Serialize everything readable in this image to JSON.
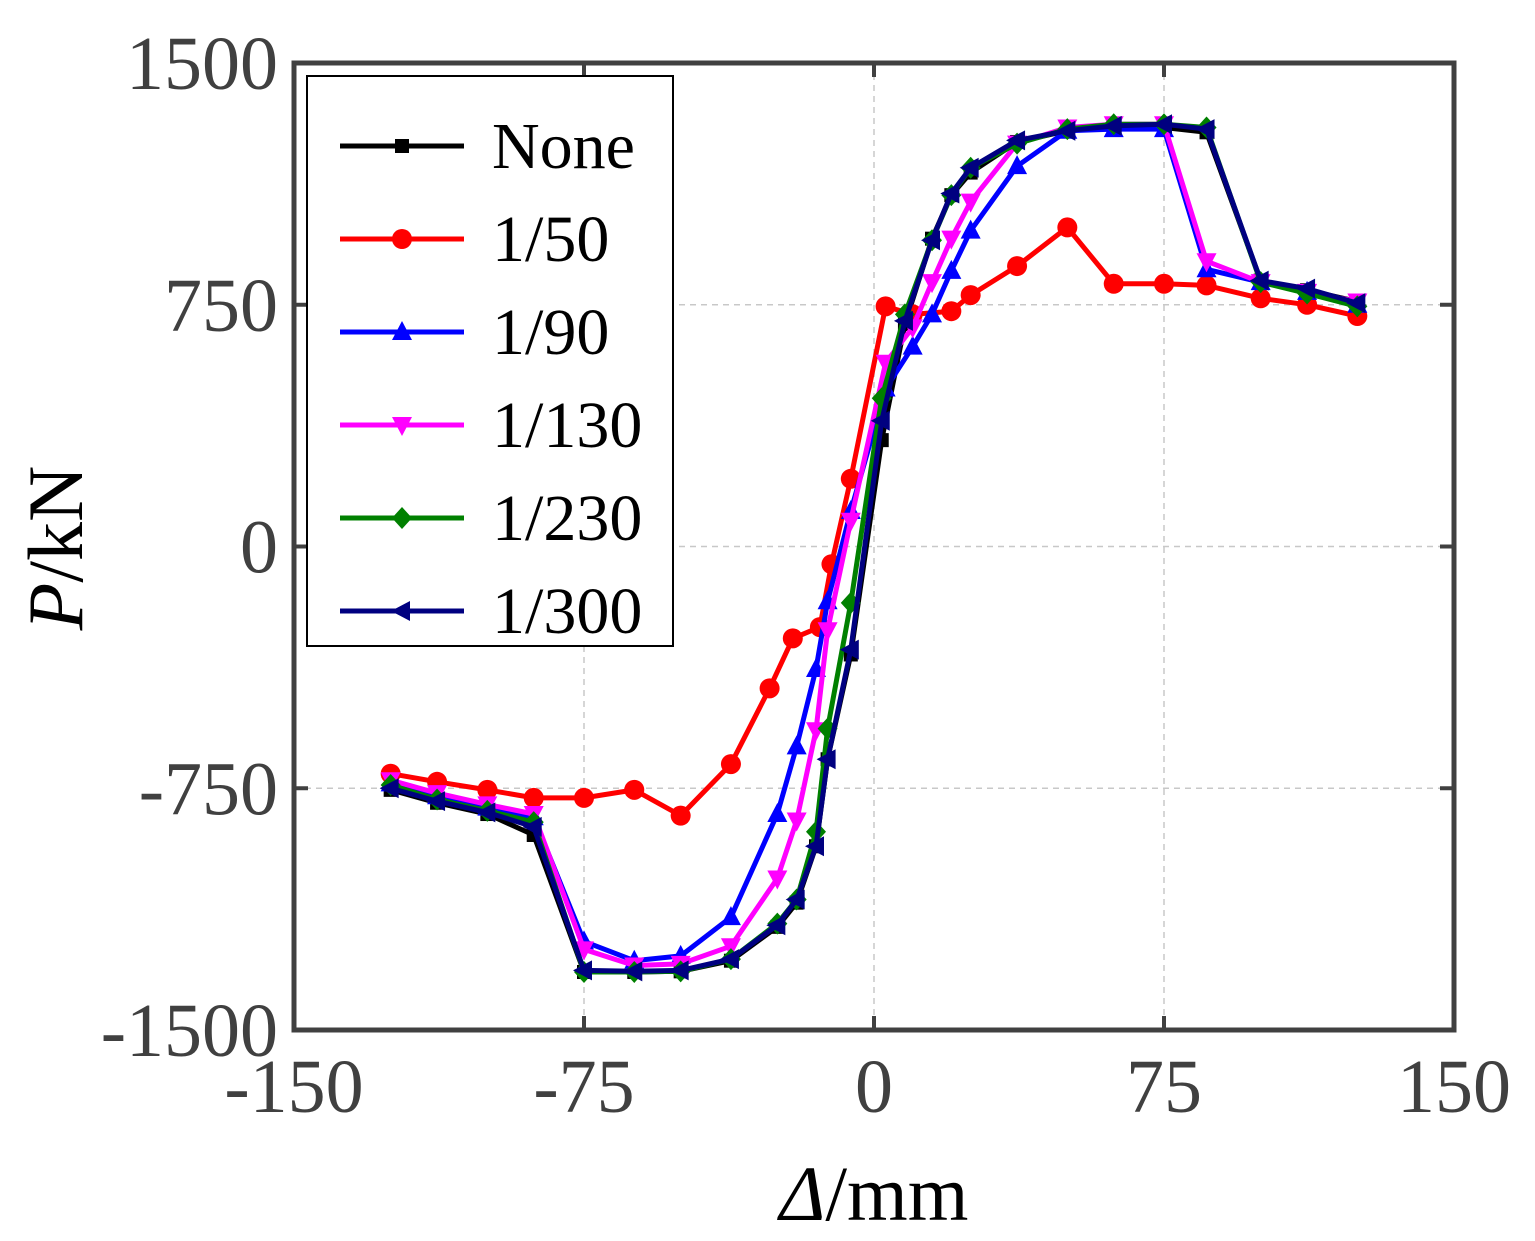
{
  "chart_data": {
    "type": "line",
    "xlabel_italic": "Δ",
    "xlabel_unit": "/mm",
    "ylabel_italic": "P",
    "ylabel_unit": "/kN",
    "xlim": [
      -150,
      150
    ],
    "ylim": [
      -1500,
      1500
    ],
    "xticks": [
      -150,
      -75,
      0,
      75,
      150
    ],
    "yticks": [
      -1500,
      -750,
      0,
      750,
      1500
    ],
    "xtick_labels": [
      "-150",
      "-75",
      "0",
      "75",
      "150"
    ],
    "ytick_labels": [
      "-1500",
      "-750",
      "0",
      "750",
      "1500"
    ],
    "grid": true,
    "legend_position": "top-left",
    "series": [
      {
        "name": "None",
        "color": "#000000",
        "marker": "square",
        "points": [
          [
            -125,
            -755
          ],
          [
            -113,
            -795
          ],
          [
            -100,
            -830
          ],
          [
            -88,
            -895
          ],
          [
            -75,
            -1320
          ],
          [
            -62,
            -1320
          ],
          [
            -50,
            -1318
          ],
          [
            -37,
            -1285
          ],
          [
            -25,
            -1180
          ],
          [
            -20,
            -1105
          ],
          [
            -15,
            -930
          ],
          [
            -12,
            -660
          ],
          [
            -6,
            -335
          ],
          [
            2,
            330
          ],
          [
            8,
            690
          ],
          [
            15,
            955
          ],
          [
            20,
            1090
          ],
          [
            25,
            1160
          ],
          [
            37,
            1255
          ],
          [
            50,
            1290
          ],
          [
            62,
            1300
          ],
          [
            75,
            1300
          ],
          [
            86,
            1285
          ],
          [
            100,
            825
          ],
          [
            112,
            795
          ],
          [
            125,
            760
          ]
        ]
      },
      {
        "name": "1/50",
        "color": "#ff0000",
        "marker": "circle",
        "points": [
          [
            -125,
            -705
          ],
          [
            -113,
            -730
          ],
          [
            -100,
            -755
          ],
          [
            -88,
            -780
          ],
          [
            -75,
            -780
          ],
          [
            -62,
            -755
          ],
          [
            -50,
            -835
          ],
          [
            -37,
            -675
          ],
          [
            -27,
            -440
          ],
          [
            -21,
            -285
          ],
          [
            -14,
            -250
          ],
          [
            -11,
            -55
          ],
          [
            -6,
            210
          ],
          [
            3,
            745
          ],
          [
            10,
            720
          ],
          [
            20,
            730
          ],
          [
            25,
            780
          ],
          [
            37,
            870
          ],
          [
            50,
            990
          ],
          [
            62,
            815
          ],
          [
            75,
            815
          ],
          [
            86,
            810
          ],
          [
            100,
            770
          ],
          [
            112,
            750
          ],
          [
            125,
            715
          ]
        ]
      },
      {
        "name": "1/90",
        "color": "#0000ff",
        "marker": "triangle-up",
        "points": [
          [
            -125,
            -735
          ],
          [
            -113,
            -775
          ],
          [
            -100,
            -810
          ],
          [
            -88,
            -840
          ],
          [
            -75,
            -1225
          ],
          [
            -62,
            -1285
          ],
          [
            -50,
            -1270
          ],
          [
            -37,
            -1150
          ],
          [
            -25,
            -830
          ],
          [
            -20,
            -620
          ],
          [
            -15,
            -380
          ],
          [
            -12,
            -170
          ],
          [
            -6,
            110
          ],
          [
            3,
            490
          ],
          [
            10,
            620
          ],
          [
            15,
            720
          ],
          [
            20,
            855
          ],
          [
            25,
            980
          ],
          [
            37,
            1180
          ],
          [
            50,
            1290
          ],
          [
            62,
            1295
          ],
          [
            75,
            1295
          ],
          [
            86,
            860
          ],
          [
            100,
            820
          ],
          [
            112,
            790
          ],
          [
            125,
            750
          ]
        ]
      },
      {
        "name": "1/130",
        "color": "#ff00ff",
        "marker": "triangle-down",
        "points": [
          [
            -125,
            -725
          ],
          [
            -113,
            -765
          ],
          [
            -100,
            -800
          ],
          [
            -88,
            -830
          ],
          [
            -75,
            -1250
          ],
          [
            -62,
            -1300
          ],
          [
            -50,
            -1295
          ],
          [
            -37,
            -1240
          ],
          [
            -25,
            -1030
          ],
          [
            -20,
            -850
          ],
          [
            -15,
            -570
          ],
          [
            -12,
            -260
          ],
          [
            -6,
            80
          ],
          [
            3,
            570
          ],
          [
            10,
            680
          ],
          [
            15,
            820
          ],
          [
            20,
            955
          ],
          [
            25,
            1070
          ],
          [
            37,
            1250
          ],
          [
            50,
            1300
          ],
          [
            62,
            1310
          ],
          [
            75,
            1310
          ],
          [
            86,
            885
          ],
          [
            100,
            820
          ],
          [
            112,
            790
          ],
          [
            125,
            760
          ]
        ]
      },
      {
        "name": "1/230",
        "color": "#008000",
        "marker": "diamond",
        "points": [
          [
            -125,
            -740
          ],
          [
            -113,
            -785
          ],
          [
            -100,
            -820
          ],
          [
            -88,
            -855
          ],
          [
            -75,
            -1320
          ],
          [
            -62,
            -1320
          ],
          [
            -50,
            -1318
          ],
          [
            -37,
            -1280
          ],
          [
            -25,
            -1170
          ],
          [
            -20,
            -1095
          ],
          [
            -15,
            -885
          ],
          [
            -12,
            -565
          ],
          [
            -6,
            -175
          ],
          [
            2,
            460
          ],
          [
            8,
            720
          ],
          [
            15,
            950
          ],
          [
            20,
            1090
          ],
          [
            25,
            1175
          ],
          [
            37,
            1250
          ],
          [
            50,
            1295
          ],
          [
            62,
            1310
          ],
          [
            75,
            1310
          ],
          [
            86,
            1300
          ],
          [
            100,
            820
          ],
          [
            112,
            785
          ],
          [
            125,
            745
          ]
        ]
      },
      {
        "name": "1/300",
        "color": "#000080",
        "marker": "triangle-left",
        "points": [
          [
            -125,
            -750
          ],
          [
            -113,
            -790
          ],
          [
            -100,
            -825
          ],
          [
            -88,
            -870
          ],
          [
            -75,
            -1315
          ],
          [
            -62,
            -1318
          ],
          [
            -50,
            -1315
          ],
          [
            -37,
            -1280
          ],
          [
            -25,
            -1175
          ],
          [
            -20,
            -1095
          ],
          [
            -15,
            -930
          ],
          [
            -12,
            -660
          ],
          [
            -6,
            -320
          ],
          [
            2,
            390
          ],
          [
            8,
            700
          ],
          [
            15,
            950
          ],
          [
            20,
            1095
          ],
          [
            25,
            1175
          ],
          [
            37,
            1260
          ],
          [
            50,
            1290
          ],
          [
            62,
            1305
          ],
          [
            75,
            1310
          ],
          [
            86,
            1295
          ],
          [
            100,
            825
          ],
          [
            112,
            800
          ],
          [
            125,
            755
          ]
        ]
      }
    ]
  }
}
